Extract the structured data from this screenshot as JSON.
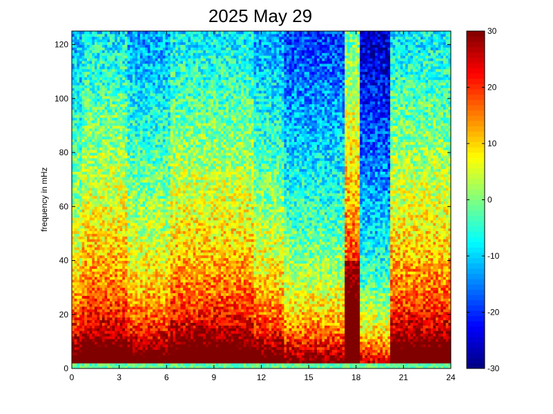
{
  "chart_data": {
    "type": "heatmap",
    "title": "2025 May 29",
    "xlabel": "",
    "ylabel": "frequency in mHz",
    "xlim": [
      0,
      24
    ],
    "ylim": [
      0,
      125
    ],
    "x_ticks": [
      "0",
      "3",
      "6",
      "9",
      "12",
      "15",
      "18",
      "21",
      "24"
    ],
    "y_ticks": [
      "0",
      "20",
      "40",
      "60",
      "80",
      "100",
      "120"
    ],
    "colorbar": {
      "colormap": "jet",
      "range": [
        -30,
        30
      ],
      "ticks": [
        "-30",
        "-20",
        "-10",
        "0",
        "10",
        "20",
        "30"
      ]
    },
    "time_columns": 150,
    "frequency_rows": 125,
    "value_model": {
      "description_of_bands_hours": [
        {
          "start": 0.0,
          "end": 0.6,
          "level": "moderate"
        },
        {
          "start": 0.6,
          "end": 3.6,
          "level": "high"
        },
        {
          "start": 3.6,
          "end": 6.3,
          "level": "medium"
        },
        {
          "start": 6.3,
          "end": 11.5,
          "level": "high"
        },
        {
          "start": 11.5,
          "end": 13.5,
          "level": "medium"
        },
        {
          "start": 13.5,
          "end": 17.3,
          "level": "low"
        },
        {
          "start": 17.3,
          "end": 18.3,
          "level": "spike"
        },
        {
          "start": 18.3,
          "end": 20.2,
          "level": "very-low"
        },
        {
          "start": 20.2,
          "end": 24.0,
          "level": "high"
        }
      ]
    }
  }
}
